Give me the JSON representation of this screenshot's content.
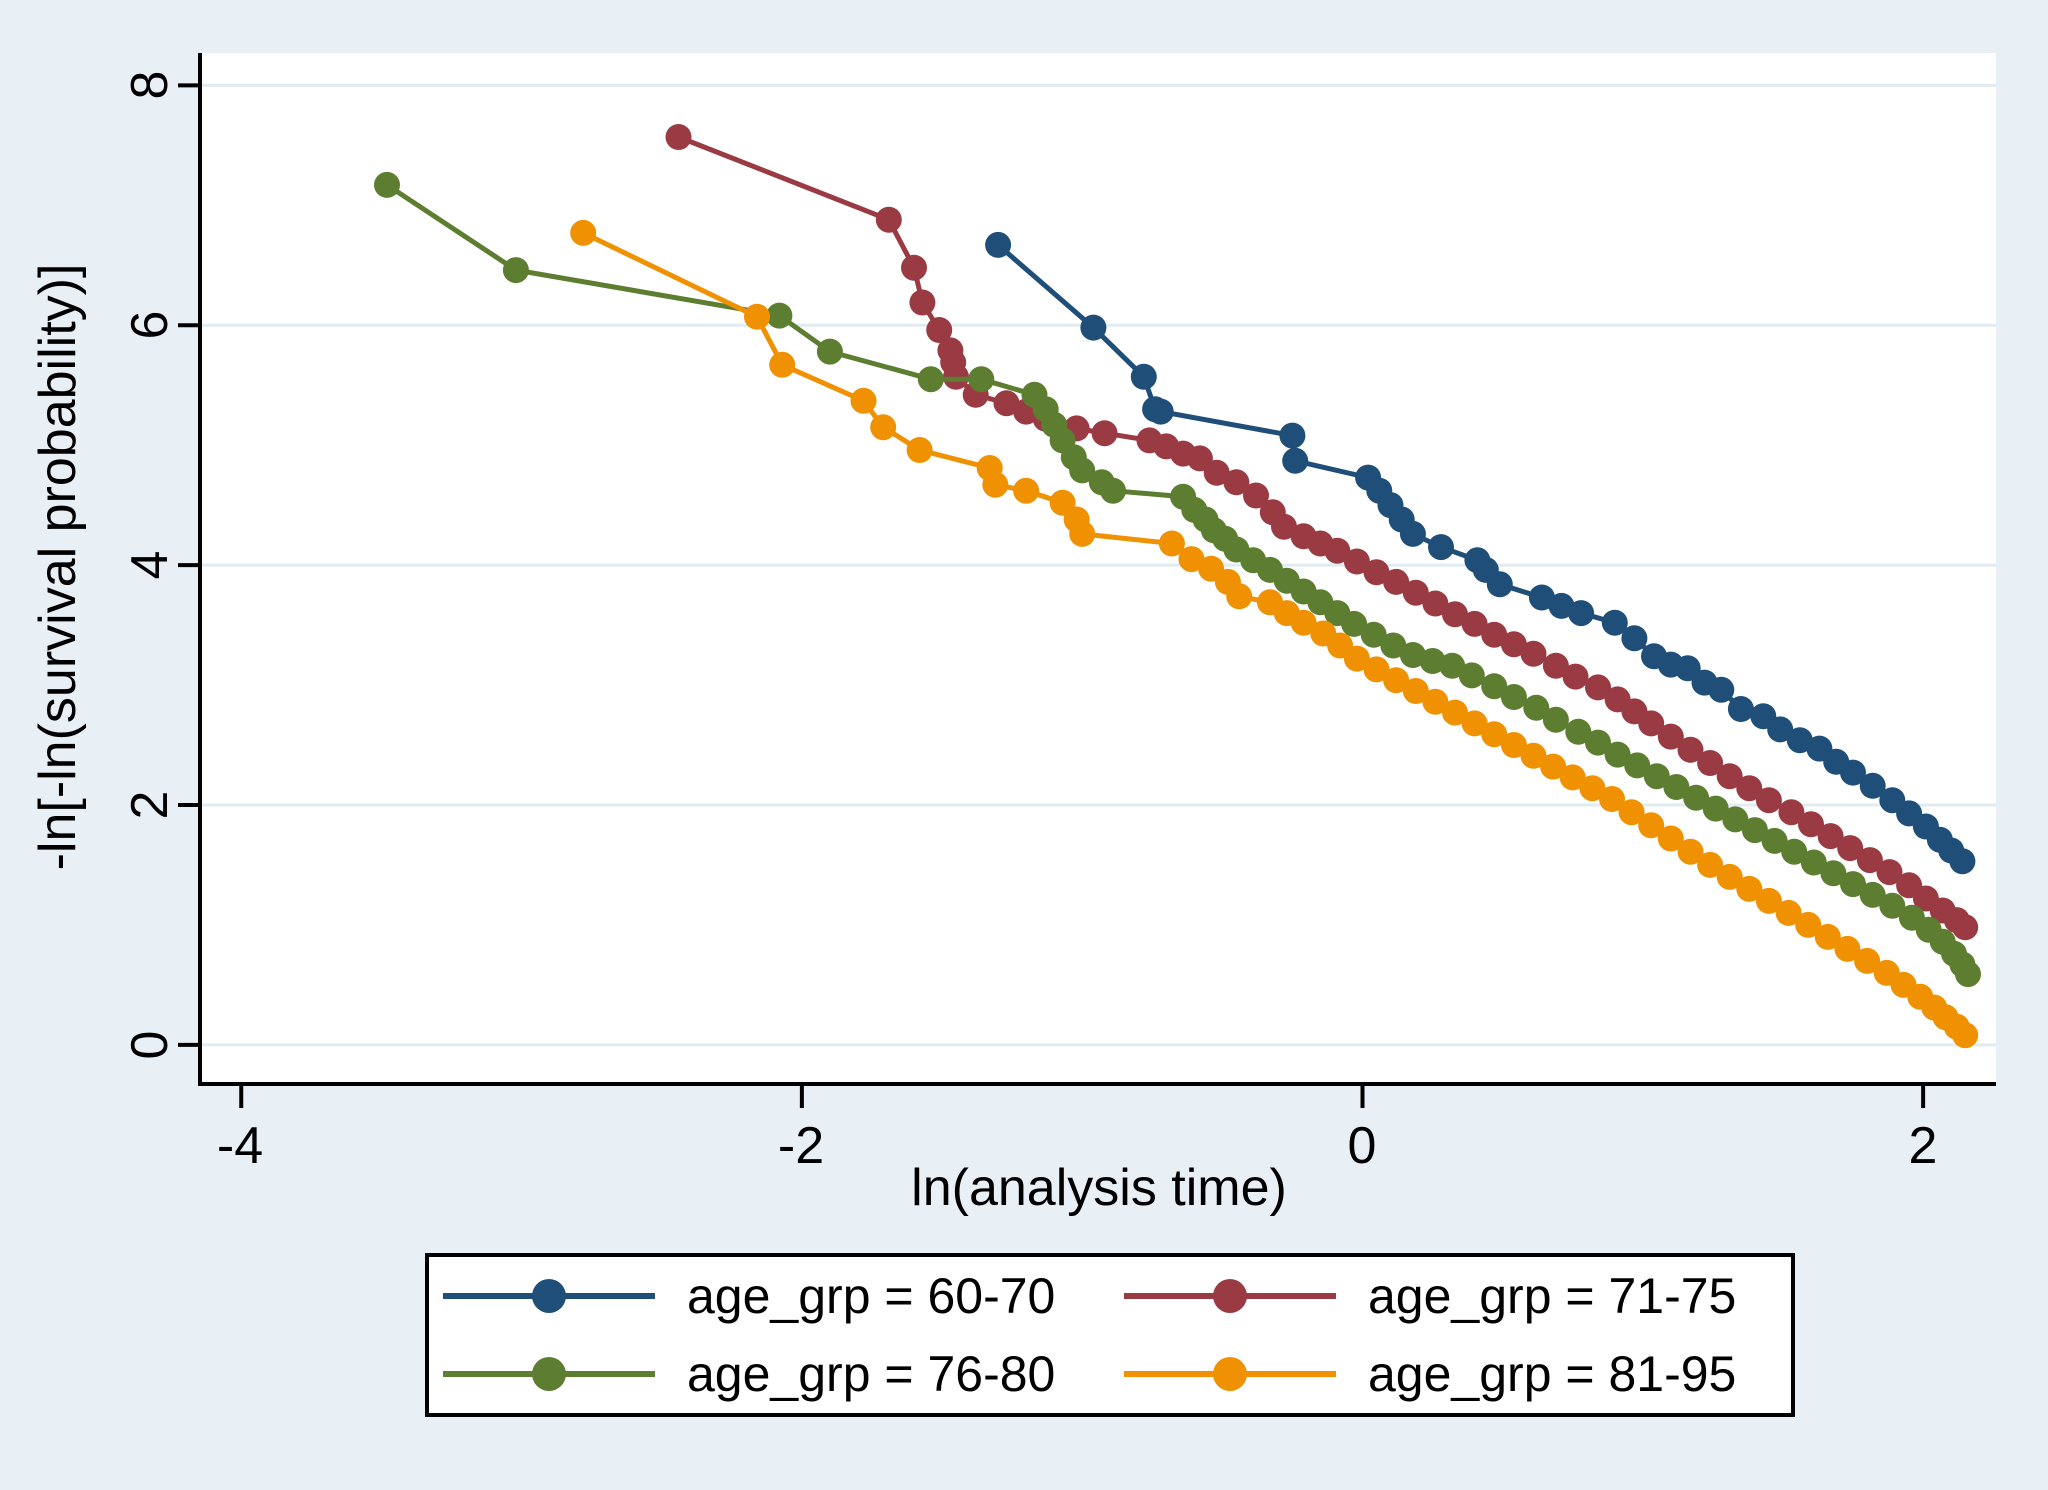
{
  "chart_data": {
    "type": "line",
    "title": "",
    "xlabel": "ln(analysis time)",
    "ylabel": "-ln[-ln(survival probability)]",
    "x_range": [
      -4.14,
      2.26
    ],
    "y_range": [
      -0.31,
      8.27
    ],
    "x_ticks": {
      "values": [
        -4,
        -2,
        0,
        2
      ],
      "labels": [
        "-4",
        "-2",
        "0",
        "2"
      ]
    },
    "y_ticks": {
      "values": [
        8,
        6,
        4,
        2,
        0
      ],
      "labels": [
        "8",
        "6",
        "4",
        "2",
        "0"
      ]
    },
    "grid": "horizontal",
    "legend_position": "bottom",
    "background_color": "#e9f0f5",
    "plot_background_color": "#ffffff",
    "grid_color": "#e0ebf2",
    "axis_color": "#000000",
    "marker_radius": 13,
    "line_width": 5,
    "series": [
      {
        "name": "age_grp = 60-70",
        "color": "#1f4e79",
        "points": [
          [
            -1.3,
            6.67
          ],
          [
            -0.96,
            5.98
          ],
          [
            -0.78,
            5.57
          ],
          [
            -0.74,
            5.3
          ],
          [
            -0.72,
            5.28
          ],
          [
            -0.25,
            5.08
          ],
          [
            -0.24,
            4.87
          ],
          [
            0.02,
            4.73
          ],
          [
            0.06,
            4.62
          ],
          [
            0.1,
            4.5
          ],
          [
            0.14,
            4.38
          ],
          [
            0.18,
            4.26
          ],
          [
            0.28,
            4.15
          ],
          [
            0.41,
            4.04
          ],
          [
            0.44,
            3.96
          ],
          [
            0.49,
            3.84
          ],
          [
            0.64,
            3.73
          ],
          [
            0.71,
            3.66
          ],
          [
            0.78,
            3.6
          ],
          [
            0.9,
            3.52
          ],
          [
            0.97,
            3.39
          ],
          [
            1.04,
            3.24
          ],
          [
            1.1,
            3.17
          ],
          [
            1.16,
            3.14
          ],
          [
            1.22,
            3.02
          ],
          [
            1.28,
            2.96
          ],
          [
            1.35,
            2.8
          ],
          [
            1.43,
            2.74
          ],
          [
            1.49,
            2.63
          ],
          [
            1.56,
            2.54
          ],
          [
            1.63,
            2.47
          ],
          [
            1.69,
            2.36
          ],
          [
            1.75,
            2.27
          ],
          [
            1.82,
            2.16
          ],
          [
            1.89,
            2.04
          ],
          [
            1.95,
            1.93
          ],
          [
            2.01,
            1.82
          ],
          [
            2.06,
            1.71
          ],
          [
            2.1,
            1.62
          ],
          [
            2.14,
            1.53
          ]
        ]
      },
      {
        "name": "age_grp = 71-75",
        "color": "#9a3b44",
        "points": [
          [
            -2.44,
            7.57
          ],
          [
            -1.69,
            6.88
          ],
          [
            -1.6,
            6.48
          ],
          [
            -1.57,
            6.19
          ],
          [
            -1.51,
            5.96
          ],
          [
            -1.47,
            5.79
          ],
          [
            -1.46,
            5.69
          ],
          [
            -1.45,
            5.57
          ],
          [
            -1.38,
            5.42
          ],
          [
            -1.27,
            5.35
          ],
          [
            -1.2,
            5.28
          ],
          [
            -1.13,
            5.22
          ],
          [
            -1.02,
            5.14
          ],
          [
            -0.92,
            5.1
          ],
          [
            -0.76,
            5.04
          ],
          [
            -0.7,
            4.99
          ],
          [
            -0.64,
            4.93
          ],
          [
            -0.58,
            4.89
          ],
          [
            -0.52,
            4.77
          ],
          [
            -0.45,
            4.69
          ],
          [
            -0.38,
            4.58
          ],
          [
            -0.32,
            4.44
          ],
          [
            -0.28,
            4.32
          ],
          [
            -0.21,
            4.24
          ],
          [
            -0.15,
            4.18
          ],
          [
            -0.09,
            4.12
          ],
          [
            -0.02,
            4.03
          ],
          [
            0.05,
            3.94
          ],
          [
            0.12,
            3.86
          ],
          [
            0.19,
            3.77
          ],
          [
            0.26,
            3.68
          ],
          [
            0.33,
            3.59
          ],
          [
            0.4,
            3.51
          ],
          [
            0.47,
            3.42
          ],
          [
            0.54,
            3.34
          ],
          [
            0.61,
            3.26
          ],
          [
            0.69,
            3.16
          ],
          [
            0.76,
            3.07
          ],
          [
            0.84,
            2.98
          ],
          [
            0.91,
            2.88
          ],
          [
            0.97,
            2.78
          ],
          [
            1.03,
            2.68
          ],
          [
            1.1,
            2.57
          ],
          [
            1.17,
            2.46
          ],
          [
            1.24,
            2.35
          ],
          [
            1.31,
            2.24
          ],
          [
            1.38,
            2.14
          ],
          [
            1.45,
            2.04
          ],
          [
            1.53,
            1.94
          ],
          [
            1.6,
            1.84
          ],
          [
            1.67,
            1.74
          ],
          [
            1.74,
            1.64
          ],
          [
            1.81,
            1.54
          ],
          [
            1.88,
            1.44
          ],
          [
            1.95,
            1.33
          ],
          [
            2.01,
            1.22
          ],
          [
            2.07,
            1.12
          ],
          [
            2.12,
            1.04
          ],
          [
            2.15,
            0.98
          ]
        ]
      },
      {
        "name": "age_grp = 76-80",
        "color": "#5d7e31",
        "points": [
          [
            -3.48,
            7.17
          ],
          [
            -3.02,
            6.46
          ],
          [
            -2.08,
            6.08
          ],
          [
            -1.9,
            5.78
          ],
          [
            -1.54,
            5.55
          ],
          [
            -1.36,
            5.55
          ],
          [
            -1.17,
            5.42
          ],
          [
            -1.13,
            5.3
          ],
          [
            -1.1,
            5.17
          ],
          [
            -1.07,
            5.04
          ],
          [
            -1.03,
            4.9
          ],
          [
            -1.0,
            4.79
          ],
          [
            -0.93,
            4.69
          ],
          [
            -0.89,
            4.62
          ],
          [
            -0.64,
            4.57
          ],
          [
            -0.6,
            4.46
          ],
          [
            -0.56,
            4.38
          ],
          [
            -0.53,
            4.29
          ],
          [
            -0.49,
            4.22
          ],
          [
            -0.45,
            4.13
          ],
          [
            -0.39,
            4.04
          ],
          [
            -0.33,
            3.96
          ],
          [
            -0.27,
            3.87
          ],
          [
            -0.21,
            3.78
          ],
          [
            -0.15,
            3.69
          ],
          [
            -0.09,
            3.6
          ],
          [
            -0.03,
            3.51
          ],
          [
            0.04,
            3.42
          ],
          [
            0.11,
            3.33
          ],
          [
            0.18,
            3.25
          ],
          [
            0.25,
            3.2
          ],
          [
            0.32,
            3.16
          ],
          [
            0.39,
            3.08
          ],
          [
            0.47,
            2.99
          ],
          [
            0.54,
            2.9
          ],
          [
            0.62,
            2.81
          ],
          [
            0.69,
            2.71
          ],
          [
            0.77,
            2.61
          ],
          [
            0.84,
            2.52
          ],
          [
            0.91,
            2.42
          ],
          [
            0.98,
            2.33
          ],
          [
            1.05,
            2.24
          ],
          [
            1.12,
            2.15
          ],
          [
            1.19,
            2.06
          ],
          [
            1.26,
            1.97
          ],
          [
            1.33,
            1.88
          ],
          [
            1.4,
            1.79
          ],
          [
            1.47,
            1.7
          ],
          [
            1.54,
            1.61
          ],
          [
            1.61,
            1.52
          ],
          [
            1.68,
            1.43
          ],
          [
            1.75,
            1.34
          ],
          [
            1.82,
            1.25
          ],
          [
            1.89,
            1.16
          ],
          [
            1.96,
            1.06
          ],
          [
            2.02,
            0.96
          ],
          [
            2.07,
            0.86
          ],
          [
            2.11,
            0.76
          ],
          [
            2.14,
            0.67
          ],
          [
            2.16,
            0.59
          ]
        ]
      },
      {
        "name": "age_grp = 81-95",
        "color": "#ef9100",
        "points": [
          [
            -2.78,
            6.77
          ],
          [
            -2.16,
            6.07
          ],
          [
            -2.07,
            5.67
          ],
          [
            -1.78,
            5.37
          ],
          [
            -1.71,
            5.15
          ],
          [
            -1.58,
            4.96
          ],
          [
            -1.33,
            4.81
          ],
          [
            -1.31,
            4.67
          ],
          [
            -1.2,
            4.62
          ],
          [
            -1.07,
            4.52
          ],
          [
            -1.02,
            4.38
          ],
          [
            -1.0,
            4.26
          ],
          [
            -0.68,
            4.18
          ],
          [
            -0.61,
            4.05
          ],
          [
            -0.54,
            3.97
          ],
          [
            -0.48,
            3.86
          ],
          [
            -0.44,
            3.74
          ],
          [
            -0.33,
            3.69
          ],
          [
            -0.27,
            3.6
          ],
          [
            -0.21,
            3.52
          ],
          [
            -0.14,
            3.43
          ],
          [
            -0.08,
            3.33
          ],
          [
            -0.02,
            3.22
          ],
          [
            0.05,
            3.13
          ],
          [
            0.12,
            3.04
          ],
          [
            0.19,
            2.95
          ],
          [
            0.26,
            2.86
          ],
          [
            0.33,
            2.77
          ],
          [
            0.4,
            2.68
          ],
          [
            0.47,
            2.59
          ],
          [
            0.54,
            2.5
          ],
          [
            0.61,
            2.41
          ],
          [
            0.68,
            2.32
          ],
          [
            0.75,
            2.23
          ],
          [
            0.82,
            2.14
          ],
          [
            0.89,
            2.05
          ],
          [
            0.96,
            1.94
          ],
          [
            1.03,
            1.83
          ],
          [
            1.1,
            1.72
          ],
          [
            1.17,
            1.61
          ],
          [
            1.24,
            1.5
          ],
          [
            1.31,
            1.4
          ],
          [
            1.38,
            1.3
          ],
          [
            1.45,
            1.2
          ],
          [
            1.52,
            1.1
          ],
          [
            1.59,
            1.0
          ],
          [
            1.66,
            0.9
          ],
          [
            1.73,
            0.8
          ],
          [
            1.8,
            0.7
          ],
          [
            1.87,
            0.6
          ],
          [
            1.93,
            0.5
          ],
          [
            1.99,
            0.4
          ],
          [
            2.04,
            0.31
          ],
          [
            2.08,
            0.23
          ],
          [
            2.12,
            0.15
          ],
          [
            2.15,
            0.08
          ]
        ]
      }
    ]
  }
}
